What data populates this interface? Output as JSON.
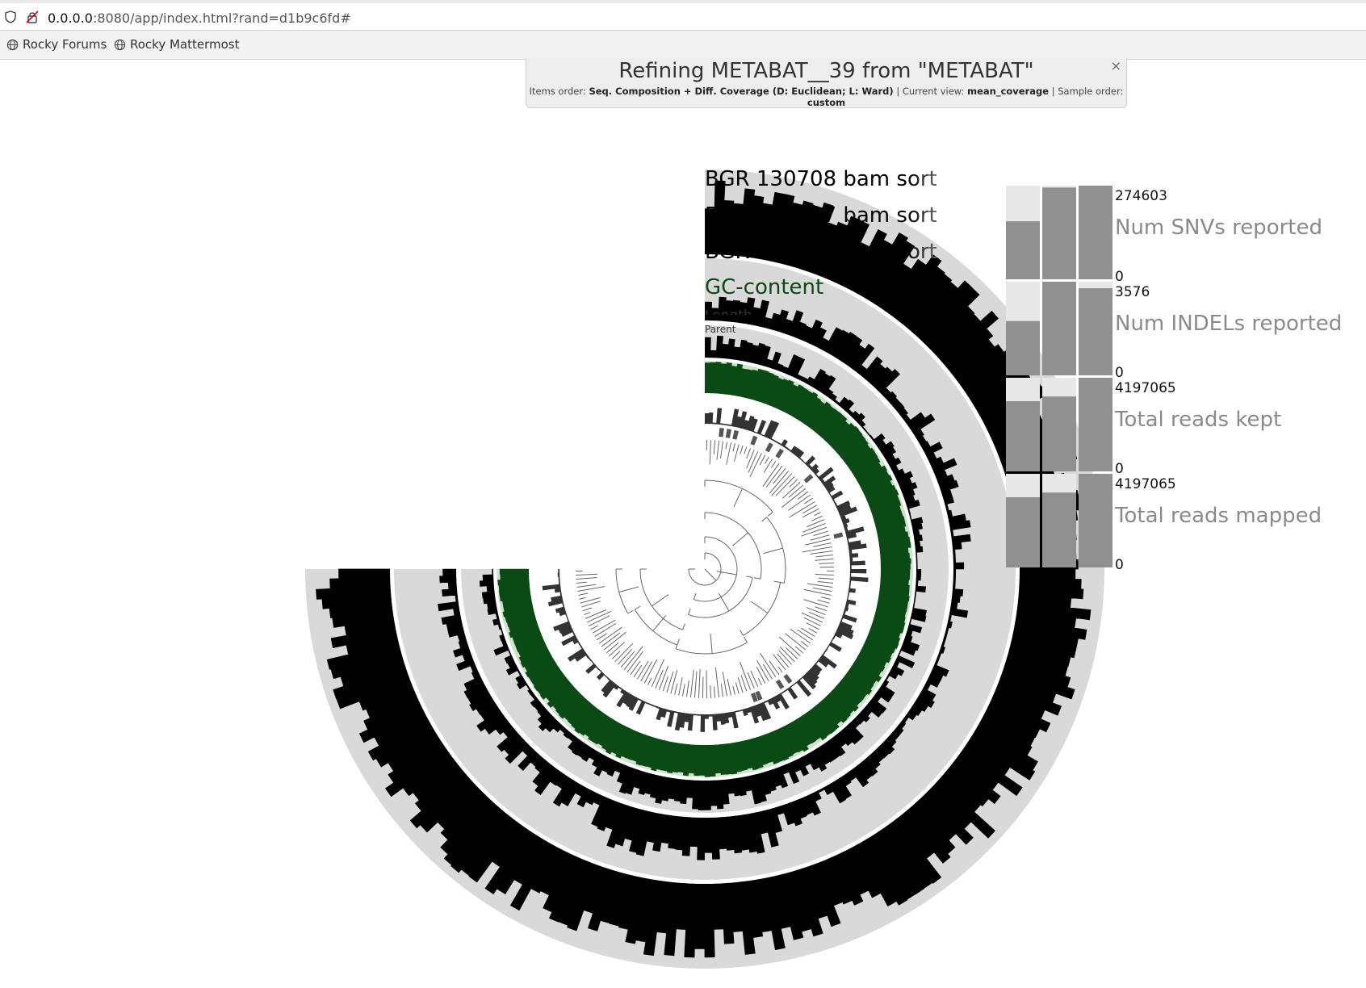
{
  "browser": {
    "url_host": "0.0.0.0",
    "url_rest": ":8080/app/index.html?rand=d1b9c6fd#",
    "bookmarks": [
      {
        "label": "Rocky Forums"
      },
      {
        "label": "Rocky Mattermost"
      }
    ]
  },
  "title_panel": {
    "title": "Refining METABAT__39 from \"METABAT\"",
    "items_order_label": "Items order:",
    "items_order_value": "Seq. Composition + Diff. Coverage (D: Euclidean; L: Ward)",
    "current_view_label": "Current view:",
    "current_view_value": "mean_coverage",
    "sample_order_label": "Sample order:",
    "sample_order_value": "custom",
    "close_label": "×"
  },
  "layers": {
    "sample_1": {
      "name": "BGR 130708 bam sorted",
      "color": "#000000"
    },
    "sample_2": {
      "name": "BGR 130527 bam sorted",
      "color": "#000000"
    },
    "sample_3": {
      "name": "BGR 130305 bam sorted",
      "color": "#000000"
    },
    "gc": {
      "name": "GC-content",
      "color": "#0a4a14"
    },
    "length": {
      "name": "Length",
      "color": "#333333"
    },
    "parent": {
      "name": "Parent",
      "color": "#555555"
    }
  },
  "sample_stats": [
    {
      "name": "Num SNVs reported",
      "max": "274603",
      "min": "0",
      "fractions": [
        0.62,
        0.98,
        1.0
      ]
    },
    {
      "name": "Num INDELs reported",
      "max": "3576",
      "min": "0",
      "fractions": [
        0.58,
        1.0,
        0.93
      ]
    },
    {
      "name": "Total reads kept",
      "max": "4197065",
      "min": "0",
      "fractions": [
        0.75,
        0.8,
        1.0
      ]
    },
    {
      "name": "Total reads mapped",
      "max": "4197065",
      "min": "0",
      "fractions": [
        0.75,
        0.8,
        1.0
      ]
    }
  ],
  "colors": {
    "ring_background": "#d9d9d9",
    "bar_fill": "#909090",
    "bar_background": "#e8e8e8",
    "stat_label": "#8a8a8a"
  }
}
